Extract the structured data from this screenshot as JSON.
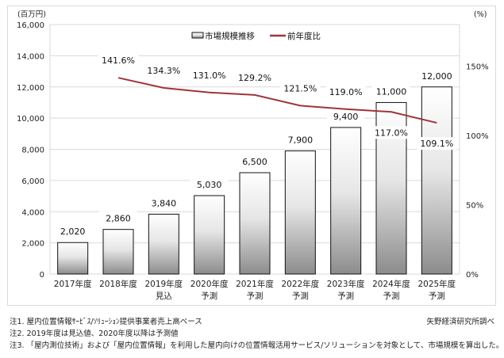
{
  "chart_data": {
    "type": "bar",
    "categories": [
      "2017年度",
      "2018年度",
      "2019年度",
      "2020年度",
      "2021年度",
      "2022年度",
      "2023年度",
      "2024年度",
      "2025年度"
    ],
    "sublabels": [
      "",
      "",
      "見込",
      "予測",
      "予測",
      "予測",
      "予測",
      "予測",
      "予測"
    ],
    "series": [
      {
        "name": "市場規模推移",
        "type": "bar",
        "axis": "left",
        "values": [
          2020,
          2860,
          3840,
          5030,
          6500,
          7900,
          9400,
          11000,
          12000
        ],
        "labels": [
          "2,020",
          "2,860",
          "3,840",
          "5,030",
          "6,500",
          "7,900",
          "9,400",
          "11,000",
          "12,000"
        ]
      },
      {
        "name": "前年度比",
        "type": "line",
        "axis": "right",
        "color": "#a0343a",
        "values": [
          null,
          141.6,
          134.3,
          131.0,
          129.2,
          121.5,
          119.0,
          117.0,
          109.1
        ],
        "labels": [
          "",
          "141.6%",
          "134.3%",
          "131.0%",
          "129.2%",
          "121.5%",
          "119.0%",
          "117.0%",
          "109.1%"
        ]
      }
    ],
    "left_axis": {
      "unit": "(百万円)",
      "range": [
        0,
        16000
      ],
      "ticks": [
        "0",
        "2,000",
        "4,000",
        "6,000",
        "8,000",
        "10,000",
        "12,000",
        "14,000",
        "16,000"
      ]
    },
    "right_axis": {
      "unit": "(%)",
      "range": [
        0,
        180
      ],
      "ticks": [
        "0%",
        "50%",
        "100%",
        "150%"
      ]
    },
    "legend": "top-center",
    "grid": true
  },
  "notes": [
    "注1.  屋内位置情報ｻｰﾋﾞｽ/ｿﾘｭｰｼｮﾝ提供事業者売上高ベース",
    "注2.  2019年度は見込値、2020年度以降は予測値",
    "注3.  「屋内測位技術」および「屋内位置情報」を利用した屋内向けの位置情報活用サービス/ソリューションを対象として、市場規模を算出した。"
  ],
  "source": "矢野経済研究所調べ"
}
